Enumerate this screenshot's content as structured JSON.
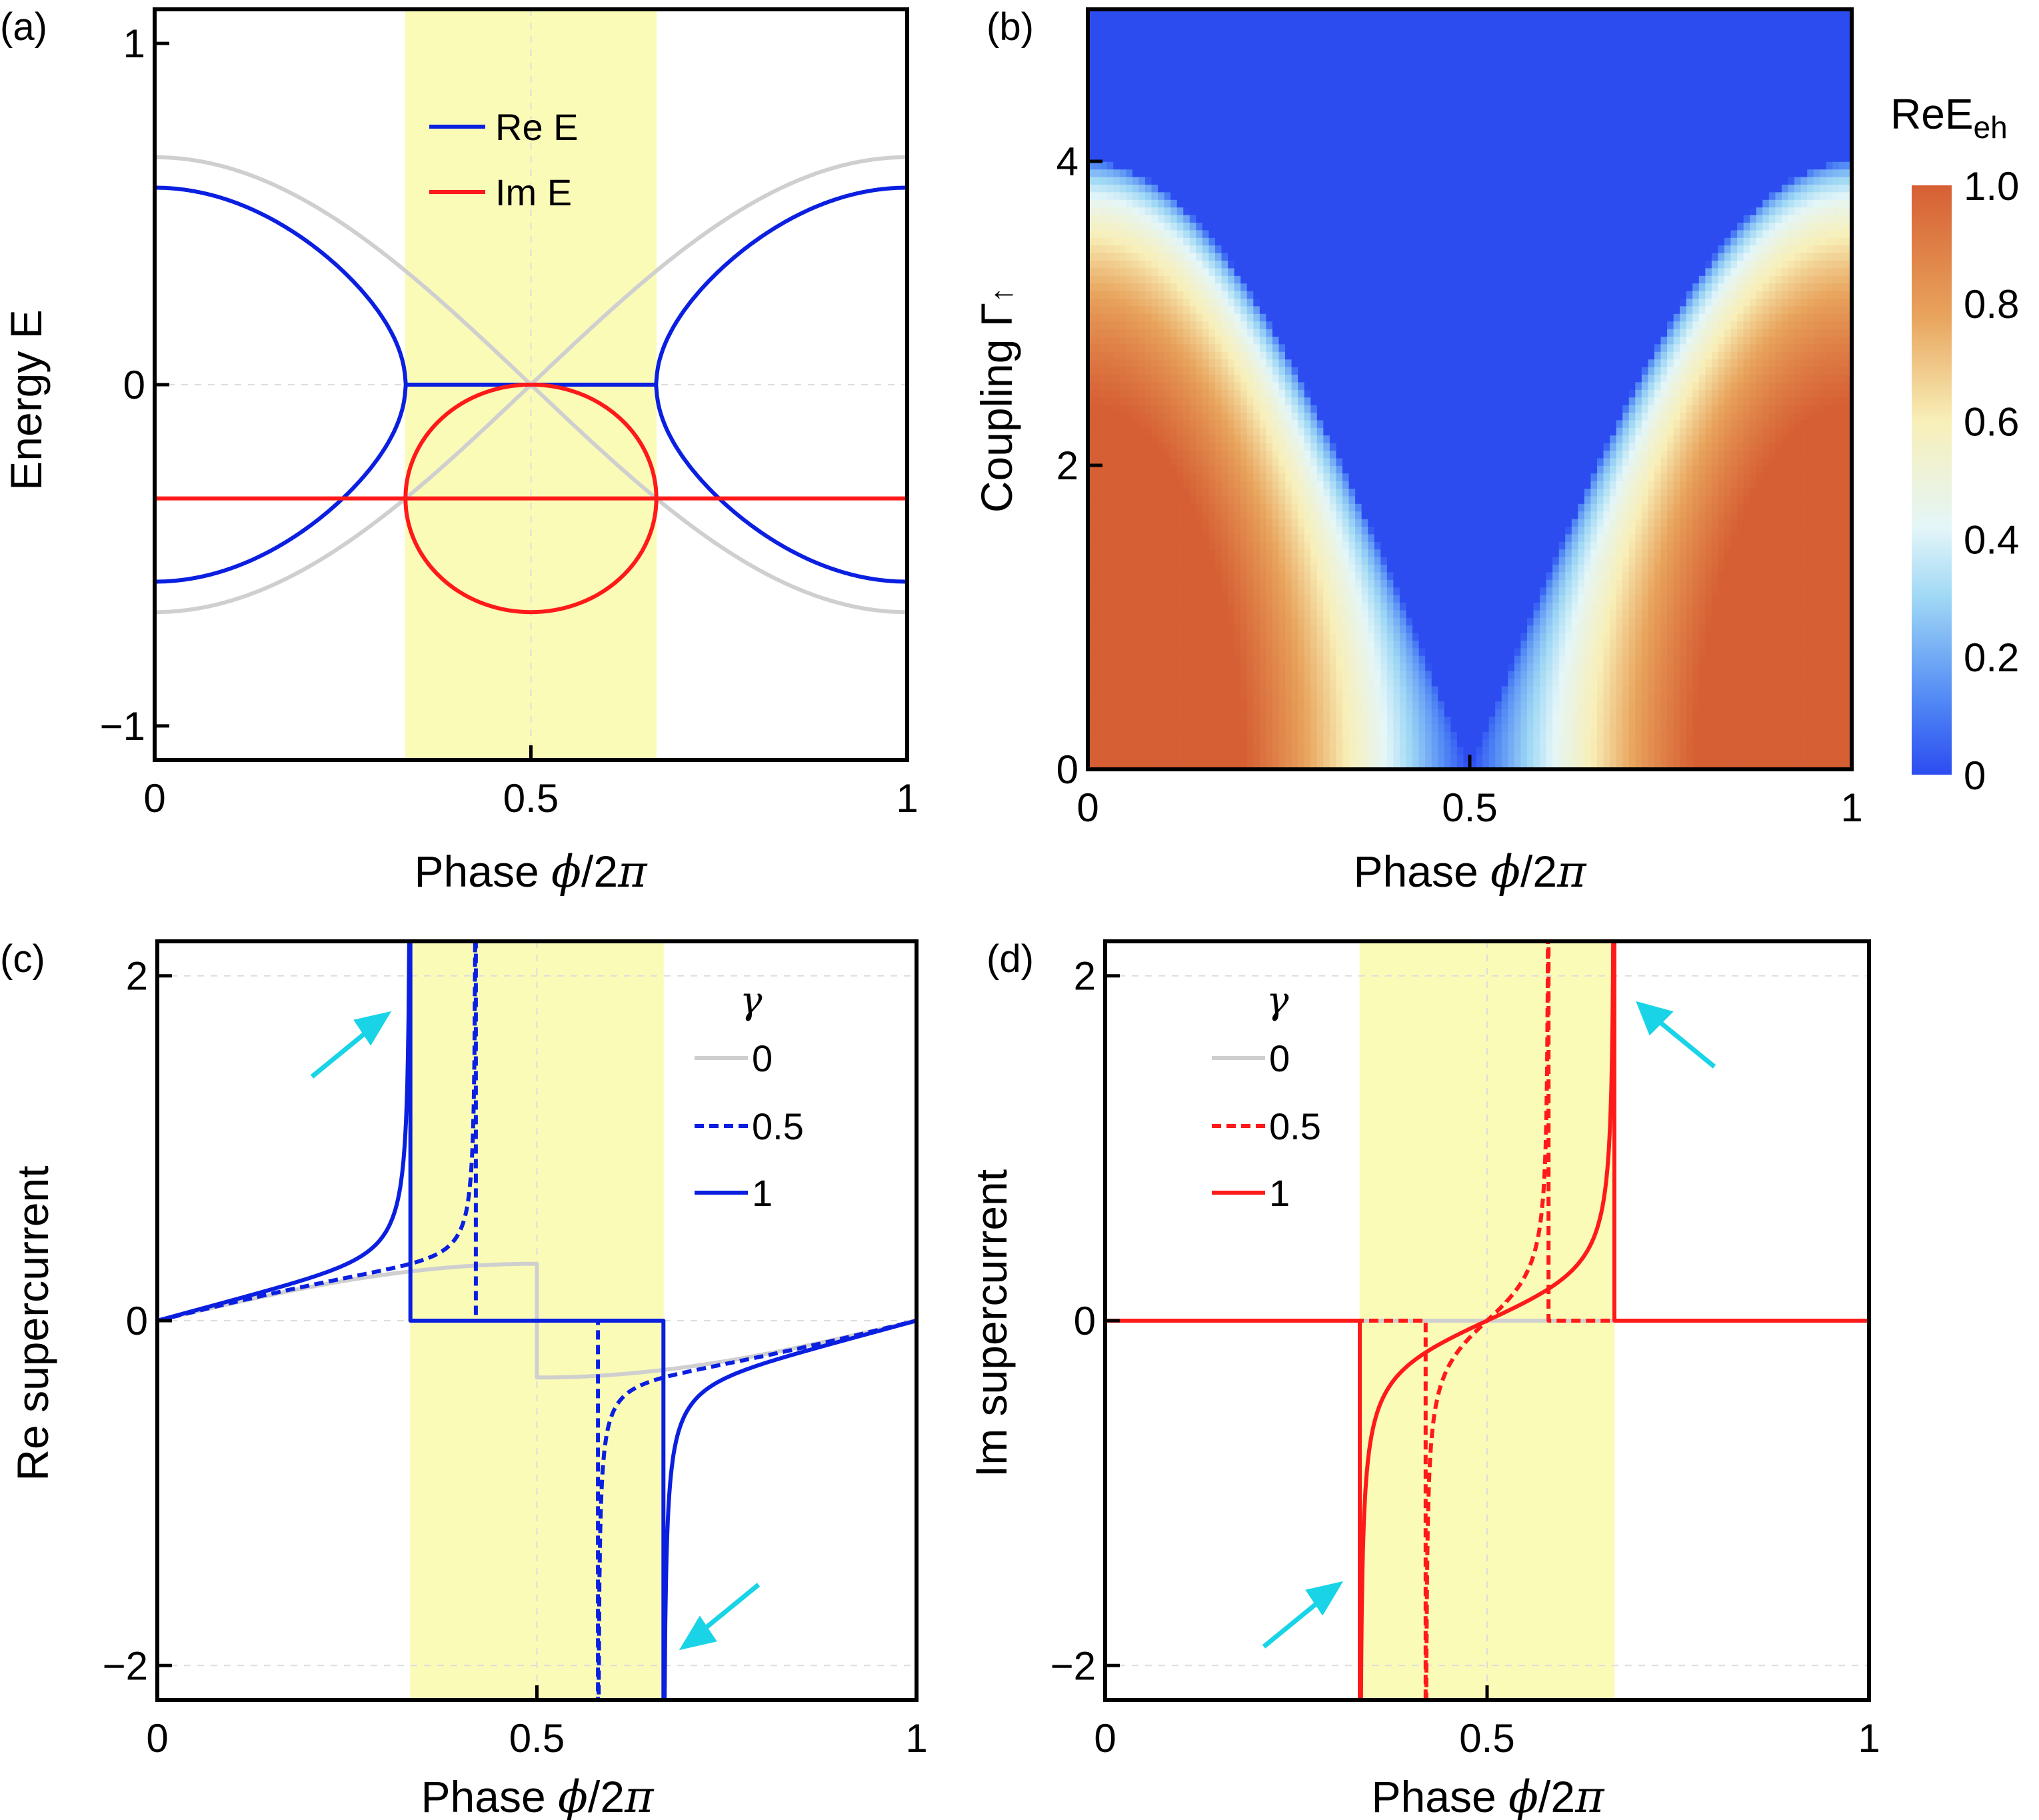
{
  "figure": {
    "panels": [
      "(a)",
      "(b)",
      "(c)",
      "(d)"
    ]
  },
  "colors": {
    "blue": "#0a1fe0",
    "red": "#ff1a1a",
    "gray": "#cfcfcf",
    "shade": "#fbfbb8",
    "arrow": "#19d3e6"
  },
  "chart_data": [
    {
      "id": "a",
      "type": "line",
      "panel_label": "(a)",
      "xlabel": "Phase φ/2π",
      "ylabel": "Energy E",
      "xlim": [
        0,
        1
      ],
      "ylim": [
        -1.1,
        1.1
      ],
      "xticks": [
        "0",
        "0.5",
        "1"
      ],
      "yticks": [
        "−1",
        "0",
        "1"
      ],
      "shaded_region": [
        0.333,
        0.667
      ],
      "legend": [
        {
          "name": "Re E",
          "color": "#0a1fe0",
          "style": "solid"
        },
        {
          "name": "Im E",
          "color": "#ff1a1a",
          "style": "solid"
        }
      ],
      "series_info": {
        "gray": "E = ±(2/3)·|cos(πφ)|-like bands (no dissipation)",
        "Re E": "±0.58 at φ=0,1; zero for 1/3 < φ/2π < 2/3",
        "Im E": "−1/3 outside region; circle from 0 to −2/3 inside"
      }
    },
    {
      "id": "b",
      "type": "heatmap",
      "panel_label": "(b)",
      "xlabel": "Phase φ/2π",
      "ylabel": "Coupling Γ↑",
      "xlim": [
        0,
        1
      ],
      "ylim": [
        0,
        5
      ],
      "xticks": [
        "0",
        "0.5",
        "1"
      ],
      "yticks": [
        "0",
        "2",
        "4"
      ],
      "colorbar": {
        "title": "ReE",
        "title_sub": "eh",
        "range": [
          0,
          1
        ],
        "ticks": [
          "0",
          "0.2",
          "0.4",
          "0.6",
          "0.8",
          "1.0"
        ]
      },
      "description": "ReE_eh = Re sqrt(cos²(πφ) − Γ²/16), zero above Γ = 4|cos(πφ)|"
    },
    {
      "id": "c",
      "type": "line",
      "panel_label": "(c)",
      "xlabel": "Phase φ/2π",
      "ylabel": "Re supercurrent",
      "xlim": [
        0,
        1
      ],
      "ylim": [
        -2.2,
        2.2
      ],
      "xticks": [
        "0",
        "0.5",
        "1"
      ],
      "yticks": [
        "−2",
        "0",
        "2"
      ],
      "shaded_region": [
        0.333,
        0.667
      ],
      "legend_title": "γ",
      "legend": [
        {
          "name": "0",
          "color": "#cfcfcf",
          "style": "solid"
        },
        {
          "name": "0.5",
          "color": "#0a1fe0",
          "style": "dashed"
        },
        {
          "name": "1",
          "color": "#0a1fe0",
          "style": "solid"
        }
      ],
      "divergence_points": {
        "gamma_0.5": [
          0.417,
          0.583
        ],
        "gamma_1": [
          0.333,
          0.667
        ]
      },
      "gamma0_step": {
        "phi": 0.5,
        "value": 0.33
      }
    },
    {
      "id": "d",
      "type": "line",
      "panel_label": "(d)",
      "xlabel": "Phase φ/2π",
      "ylabel": "Im supercurrent",
      "xlim": [
        0,
        1
      ],
      "ylim": [
        -2.2,
        2.2
      ],
      "xticks": [
        "0",
        "0.5",
        "1"
      ],
      "yticks": [
        "−2",
        "0",
        "2"
      ],
      "shaded_region": [
        0.333,
        0.667
      ],
      "legend_title": "γ",
      "legend": [
        {
          "name": "0",
          "color": "#cfcfcf",
          "style": "solid"
        },
        {
          "name": "0.5",
          "color": "#ff1a1a",
          "style": "dashed"
        },
        {
          "name": "1",
          "color": "#ff1a1a",
          "style": "solid"
        }
      ],
      "divergence_points": {
        "gamma_0.5": [
          0.417,
          0.583
        ],
        "gamma_1": [
          0.333,
          0.667
        ]
      }
    }
  ]
}
